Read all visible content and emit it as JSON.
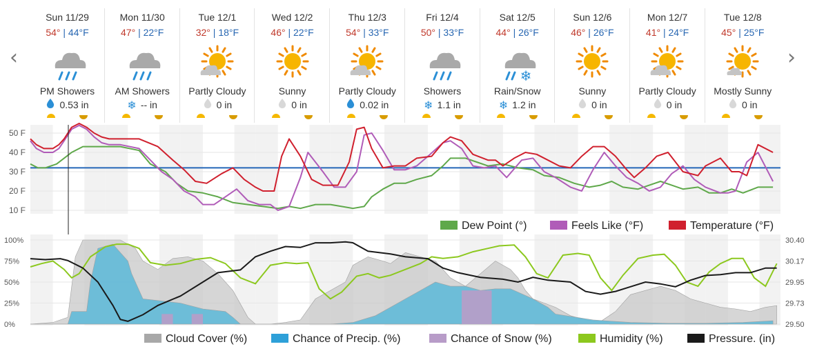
{
  "nav": {
    "prev_icon": "chevron-left-icon",
    "prev_glyph": "‹",
    "next_icon": "chevron-right-icon",
    "next_glyph": "›"
  },
  "days": [
    {
      "name": "Sun 11/29",
      "hi": "54°",
      "lo": "44°F",
      "condition": "PM Showers",
      "icon": "rain-showers-icon",
      "precip_type": "rain",
      "precip": "0.53 in"
    },
    {
      "name": "Mon 11/30",
      "hi": "47°",
      "lo": "22°F",
      "condition": "AM Showers",
      "icon": "rain-showers-icon",
      "precip_type": "snow",
      "precip": "-- in"
    },
    {
      "name": "Tue 12/1",
      "hi": "32°",
      "lo": "18°F",
      "condition": "Partly Cloudy",
      "icon": "partly-cloudy-icon",
      "precip_type": "none",
      "precip": "0 in"
    },
    {
      "name": "Wed 12/2",
      "hi": "46°",
      "lo": "22°F",
      "condition": "Sunny",
      "icon": "sunny-icon",
      "precip_type": "none",
      "precip": "0 in"
    },
    {
      "name": "Thu 12/3",
      "hi": "54°",
      "lo": "33°F",
      "condition": "Partly Cloudy",
      "icon": "partly-cloudy-icon",
      "precip_type": "rain",
      "precip": "0.02 in"
    },
    {
      "name": "Fri 12/4",
      "hi": "50°",
      "lo": "33°F",
      "condition": "Showers",
      "icon": "rain-showers-icon",
      "precip_type": "snow",
      "precip": "1.1 in"
    },
    {
      "name": "Sat 12/5",
      "hi": "44°",
      "lo": "26°F",
      "condition": "Rain/Snow",
      "icon": "rain-snow-icon",
      "precip_type": "snow",
      "precip": "1.2 in"
    },
    {
      "name": "Sun 12/6",
      "hi": "46°",
      "lo": "26°F",
      "condition": "Sunny",
      "icon": "sunny-icon",
      "precip_type": "none",
      "precip": "0 in"
    },
    {
      "name": "Mon 12/7",
      "hi": "41°",
      "lo": "24°F",
      "condition": "Partly Cloudy",
      "icon": "partly-cloudy-icon",
      "precip_type": "none",
      "precip": "0 in"
    },
    {
      "name": "Tue 12/8",
      "hi": "45°",
      "lo": "25°F",
      "condition": "Mostly Sunny",
      "icon": "mostly-sunny-icon",
      "precip_type": "none",
      "precip": "0 in"
    }
  ],
  "colors": {
    "temperature": "#d0202e",
    "feels_like": "#b05cb8",
    "dew_point": "#5fa84a",
    "freezing": "#2466b8",
    "cloud": "#c8c8c8",
    "precip": "#5bb8d8",
    "snow": "#b89cc8",
    "humidity": "#8cc81e",
    "pressure": "#1a1a1a",
    "hi": "#c0392b",
    "lo": "#2867b2"
  },
  "chart_data": [
    {
      "type": "line",
      "ylim": [
        10,
        55
      ],
      "yticks": [
        "50 F",
        "40 F",
        "30 F",
        "20 F",
        "10 F"
      ],
      "x_days": 10,
      "freezing_line": 32,
      "series": [
        {
          "name": "Temperature (°F)",
          "color": "#d0202e",
          "x": [
            0,
            0.08,
            0.18,
            0.3,
            0.38,
            0.45,
            0.55,
            0.65,
            0.75,
            0.85,
            0.95,
            1.05,
            1.2,
            1.45,
            1.7,
            1.9,
            2.05,
            2.2,
            2.35,
            2.55,
            2.7,
            2.85,
            3.0,
            3.1,
            3.25,
            3.35,
            3.45,
            3.6,
            3.75,
            3.9,
            4.1,
            4.25,
            4.35,
            4.45,
            4.55,
            4.7,
            4.85,
            5.0,
            5.15,
            5.35,
            5.5,
            5.6,
            5.75,
            5.9,
            6.1,
            6.2,
            6.3,
            6.45,
            6.6,
            6.75,
            6.9,
            7.05,
            7.2,
            7.35,
            7.5,
            7.65,
            7.8,
            7.95,
            8.05,
            8.2,
            8.35,
            8.5,
            8.7,
            8.9,
            9.0,
            9.2,
            9.35,
            9.45,
            9.55,
            9.7,
            9.9
          ],
          "y": [
            47,
            44,
            42,
            42,
            44,
            47,
            53,
            55,
            53,
            50,
            48,
            47,
            47,
            47,
            43,
            36,
            31,
            25,
            24,
            29,
            32,
            26,
            22,
            20,
            20,
            38,
            47,
            38,
            26,
            23,
            23,
            35,
            52,
            53,
            42,
            32,
            33,
            33,
            37,
            38,
            45,
            48,
            46,
            39,
            36,
            36,
            33,
            37,
            40,
            39,
            36,
            33,
            32,
            38,
            43,
            43,
            38,
            31,
            27,
            32,
            38,
            40,
            30,
            28,
            33,
            37,
            30,
            30,
            28,
            44,
            40
          ]
        },
        {
          "name": "Feels Like (°F)",
          "color": "#b05cb8",
          "x": [
            0,
            0.08,
            0.18,
            0.3,
            0.38,
            0.45,
            0.55,
            0.65,
            0.75,
            0.85,
            0.95,
            1.05,
            1.2,
            1.45,
            1.6,
            1.75,
            1.9,
            2.05,
            2.2,
            2.3,
            2.45,
            2.6,
            2.75,
            2.9,
            3.05,
            3.2,
            3.3,
            3.45,
            3.6,
            3.7,
            3.9,
            4.05,
            4.2,
            4.35,
            4.45,
            4.55,
            4.7,
            4.85,
            5.0,
            5.15,
            5.3,
            5.5,
            5.6,
            5.75,
            5.9,
            6.05,
            6.2,
            6.35,
            6.55,
            6.7,
            6.85,
            7.0,
            7.2,
            7.35,
            7.5,
            7.65,
            7.8,
            7.95,
            8.1,
            8.25,
            8.4,
            8.55,
            8.7,
            8.85,
            9.0,
            9.2,
            9.3,
            9.4,
            9.55,
            9.7,
            9.9
          ],
          "y": [
            46,
            42,
            40,
            40,
            42,
            46,
            52,
            54,
            52,
            48,
            45,
            44,
            44,
            42,
            36,
            30,
            26,
            20,
            17,
            13,
            13,
            17,
            21,
            15,
            13,
            13,
            10,
            12,
            27,
            40,
            30,
            22,
            22,
            30,
            49,
            50,
            41,
            31,
            31,
            33,
            38,
            45,
            46,
            42,
            33,
            32,
            33,
            27,
            36,
            37,
            30,
            27,
            22,
            20,
            31,
            40,
            33,
            27,
            24,
            20,
            22,
            29,
            33,
            26,
            22,
            19,
            19,
            20,
            35,
            40,
            25
          ]
        },
        {
          "name": "Dew Point (°)",
          "color": "#5fa84a",
          "x": [
            0,
            0.1,
            0.2,
            0.35,
            0.45,
            0.55,
            0.7,
            0.85,
            1.0,
            1.2,
            1.45,
            1.6,
            1.8,
            1.95,
            2.1,
            2.3,
            2.5,
            2.7,
            2.9,
            3.1,
            3.3,
            3.45,
            3.6,
            3.8,
            4.0,
            4.15,
            4.3,
            4.45,
            4.55,
            4.7,
            4.85,
            5.0,
            5.15,
            5.35,
            5.5,
            5.6,
            5.8,
            5.95,
            6.1,
            6.3,
            6.5,
            6.7,
            6.85,
            7.05,
            7.25,
            7.45,
            7.6,
            7.75,
            7.9,
            8.1,
            8.25,
            8.4,
            8.55,
            8.7,
            8.9,
            9.05,
            9.2,
            9.35,
            9.5,
            9.7,
            9.9
          ],
          "y": [
            34,
            32,
            32,
            34,
            37,
            40,
            43,
            43,
            43,
            43,
            41,
            34,
            30,
            24,
            20,
            19,
            17,
            14,
            13,
            12,
            11,
            12,
            11,
            13,
            13,
            12,
            11,
            12,
            17,
            21,
            24,
            24,
            26,
            28,
            33,
            37,
            37,
            35,
            33,
            34,
            32,
            31,
            28,
            27,
            24,
            22,
            23,
            25,
            22,
            21,
            23,
            25,
            23,
            21,
            22,
            19,
            19,
            21,
            19,
            22,
            22
          ]
        }
      ],
      "legend": [
        "Dew Point (°)",
        "Feels Like (°F)",
        "Temperature (°F)"
      ]
    },
    {
      "type": "area",
      "ylim_left": [
        0,
        100
      ],
      "yticks_left": [
        "100%",
        "75%",
        "50%",
        "25%",
        "0%"
      ],
      "ylim_right": [
        29.5,
        30.4
      ],
      "yticks_right": [
        "30.40",
        "30.17",
        "29.95",
        "29.73",
        "29.50"
      ],
      "x_days": 10,
      "series": [
        {
          "name": "Cloud Cover (%)",
          "color": "#c8c8c8",
          "x": [
            0,
            0.3,
            0.5,
            0.6,
            0.7,
            0.8,
            1.0,
            1.2,
            1.4,
            1.5,
            1.7,
            1.9,
            2.1,
            2.3,
            2.5,
            2.7,
            2.9,
            3.0,
            3.1,
            3.2,
            3.4,
            3.6,
            3.8,
            4.0,
            4.2,
            4.3,
            4.5,
            4.7,
            4.8,
            5.0,
            5.2,
            5.4,
            5.6,
            5.8,
            6.0,
            6.2,
            6.4,
            6.5,
            6.6,
            6.7,
            7.0,
            7.2,
            7.4,
            7.6,
            7.8,
            8.0,
            8.2,
            8.4,
            8.6,
            8.8,
            9.0,
            9.2,
            9.4,
            9.6,
            9.8,
            9.95
          ],
          "y": [
            0,
            2,
            8,
            80,
            100,
            100,
            100,
            100,
            90,
            75,
            65,
            78,
            80,
            75,
            60,
            40,
            8,
            0,
            0,
            0,
            2,
            5,
            30,
            40,
            50,
            70,
            80,
            75,
            72,
            85,
            80,
            75,
            55,
            45,
            60,
            75,
            65,
            55,
            40,
            30,
            20,
            10,
            5,
            3,
            15,
            35,
            40,
            45,
            40,
            30,
            25,
            20,
            18,
            15,
            20,
            22
          ]
        },
        {
          "name": "Chance of Precip. (%)",
          "color": "#5bb8d8",
          "x": [
            0,
            0.5,
            0.55,
            0.75,
            0.8,
            0.9,
            1.1,
            1.3,
            1.35,
            1.5,
            1.7,
            2.0,
            2.3,
            2.6,
            2.7,
            2.8,
            3.0,
            3.5,
            4.0,
            4.3,
            4.6,
            4.8,
            5.0,
            5.2,
            5.4,
            5.6,
            5.8,
            6.0,
            6.2,
            6.4,
            6.5,
            6.7,
            6.9,
            7.0,
            7.5,
            8.0,
            8.5,
            9.0,
            9.5,
            9.9
          ],
          "y": [
            0,
            0,
            15,
            15,
            50,
            90,
            95,
            75,
            60,
            30,
            28,
            25,
            18,
            15,
            8,
            0,
            0,
            0,
            0,
            2,
            10,
            20,
            30,
            40,
            50,
            45,
            45,
            40,
            42,
            42,
            38,
            30,
            20,
            12,
            5,
            2,
            1,
            1,
            2,
            4
          ]
        },
        {
          "name": "Chance of Snow (%)",
          "color": "#b89cc8",
          "x": [
            1.75,
            1.75,
            1.9,
            1.9,
            2.15,
            2.15,
            2.3,
            2.3,
            5.75,
            5.75,
            6.15,
            6.15
          ],
          "y": [
            0,
            12,
            12,
            0,
            0,
            12,
            12,
            0,
            0,
            40,
            40,
            0
          ]
        },
        {
          "name": "Humidity (%)",
          "color": "#8cc81e",
          "x": [
            0,
            0.15,
            0.3,
            0.45,
            0.55,
            0.65,
            0.8,
            1.0,
            1.15,
            1.3,
            1.45,
            1.6,
            1.8,
            2.0,
            2.2,
            2.4,
            2.6,
            2.8,
            3.0,
            3.2,
            3.4,
            3.55,
            3.7,
            3.85,
            4.0,
            4.15,
            4.35,
            4.5,
            4.65,
            4.8,
            5.0,
            5.2,
            5.35,
            5.5,
            5.7,
            5.9,
            6.1,
            6.25,
            6.45,
            6.6,
            6.75,
            6.9,
            7.1,
            7.3,
            7.45,
            7.6,
            7.75,
            7.9,
            8.1,
            8.3,
            8.45,
            8.6,
            8.75,
            8.9,
            9.05,
            9.2,
            9.35,
            9.5,
            9.65,
            9.8,
            9.95
          ],
          "y": [
            68,
            72,
            75,
            65,
            55,
            60,
            80,
            92,
            95,
            95,
            90,
            73,
            70,
            72,
            77,
            79,
            72,
            55,
            48,
            70,
            73,
            72,
            73,
            42,
            30,
            38,
            57,
            60,
            55,
            58,
            65,
            72,
            80,
            78,
            80,
            86,
            90,
            93,
            94,
            80,
            60,
            55,
            82,
            84,
            82,
            55,
            40,
            58,
            78,
            82,
            83,
            70,
            50,
            45,
            62,
            72,
            78,
            78,
            55,
            45,
            72
          ]
        },
        {
          "name": "Pressure. (in)",
          "color": "#1a1a1a",
          "x": [
            0,
            0.2,
            0.4,
            0.5,
            0.7,
            0.9,
            1.1,
            1.2,
            1.3,
            1.5,
            1.7,
            2.0,
            2.3,
            2.5,
            2.8,
            3.0,
            3.2,
            3.4,
            3.6,
            3.8,
            4.0,
            4.2,
            4.3,
            4.5,
            4.8,
            5.0,
            5.3,
            5.5,
            5.7,
            6.0,
            6.3,
            6.5,
            6.7,
            6.9,
            7.2,
            7.4,
            7.6,
            7.8,
            8.0,
            8.2,
            8.4,
            8.6,
            8.8,
            9.0,
            9.2,
            9.4,
            9.6,
            9.8,
            9.95
          ],
          "y": [
            30.2,
            30.19,
            30.2,
            30.18,
            30.1,
            29.95,
            29.7,
            29.55,
            29.53,
            29.6,
            29.7,
            29.8,
            29.95,
            30.05,
            30.08,
            30.22,
            30.28,
            30.33,
            30.32,
            30.37,
            30.37,
            30.38,
            30.37,
            30.28,
            30.25,
            30.22,
            30.2,
            30.1,
            30.05,
            30.0,
            29.98,
            29.95,
            30.0,
            29.97,
            29.95,
            29.85,
            29.82,
            29.85,
            29.9,
            29.95,
            29.93,
            29.9,
            29.97,
            30.02,
            30.03,
            30.05,
            30.05,
            30.1,
            30.1
          ]
        }
      ],
      "legend": [
        "Cloud Cover (%)",
        "Chance of Precip. (%)",
        "Chance of Snow (%)",
        "Humidity (%)",
        "Pressure. (in)"
      ]
    }
  ]
}
